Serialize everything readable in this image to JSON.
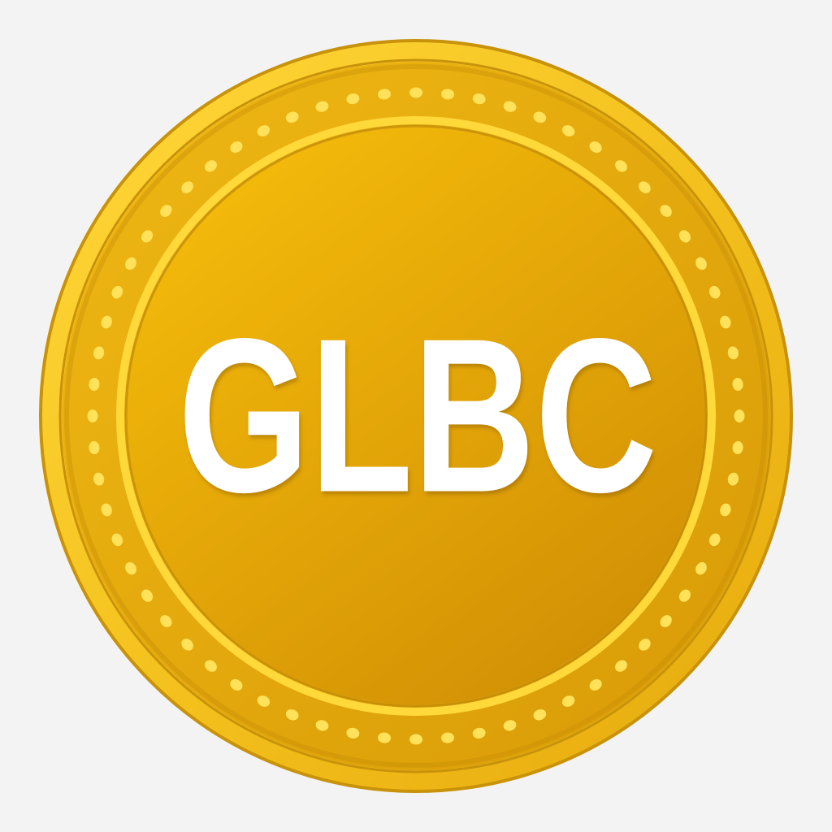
{
  "logo": {
    "text": "GLBC",
    "colors": {
      "background": "#f3f3f3",
      "outer_rim": "#f6c824",
      "outer_rim_edge": "#c8920a",
      "band": "#e3aa0c",
      "band_shadow": "#b57f05",
      "dots": "#ffe259",
      "inner_ring": "#ffd83a",
      "face_light": "#f2b80a",
      "face_dark": "#d79605",
      "text": "#ffffff"
    }
  }
}
